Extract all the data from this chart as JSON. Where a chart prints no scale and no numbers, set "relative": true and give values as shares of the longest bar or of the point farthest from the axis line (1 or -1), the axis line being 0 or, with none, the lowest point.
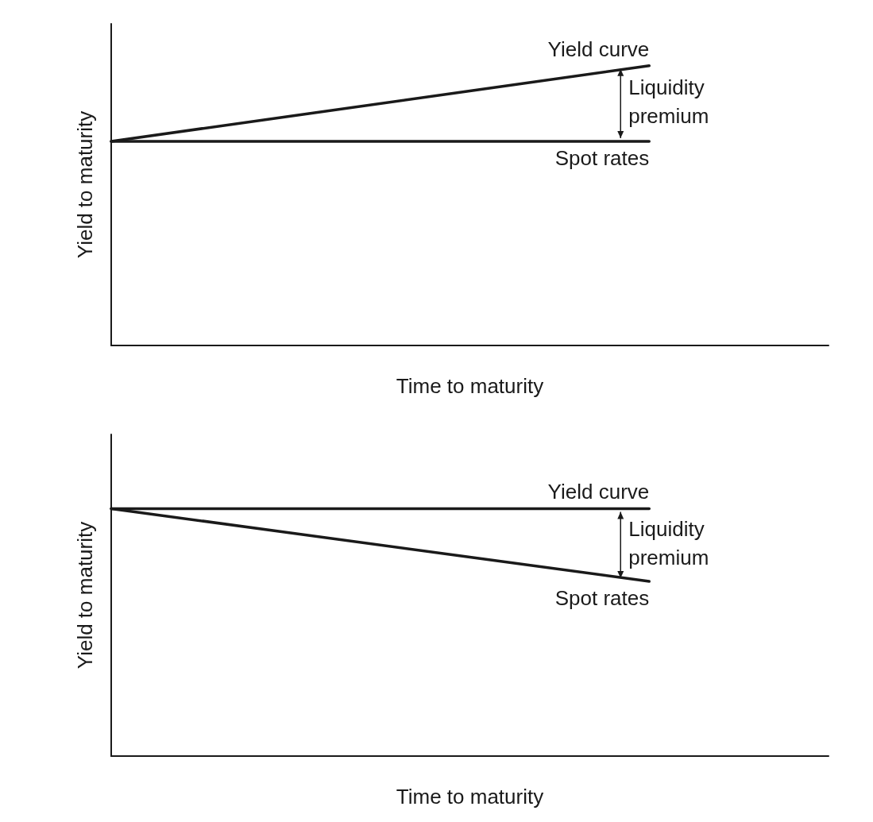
{
  "chart_data": [
    {
      "type": "line",
      "relative": true,
      "xlabel": "Time to maturity",
      "ylabel": "Yield to maturity",
      "categories": [
        null,
        null,
        null,
        null,
        null
      ],
      "series": [
        {
          "name": "Yield curve",
          "color": "#1a1a1a",
          "values": [
            0.73,
            0.82,
            0.91,
            1.0,
            null
          ]
        },
        {
          "name": "Spot rates",
          "color": "#1a1a1a",
          "values": [
            0.73,
            0.73,
            0.73,
            0.73,
            null
          ]
        }
      ],
      "annotations": [
        "Liquidity premium"
      ],
      "grid": false,
      "marker": "none",
      "line_style": "solid"
    },
    {
      "type": "line",
      "relative": true,
      "xlabel": "Time to maturity",
      "ylabel": "Yield to maturity",
      "categories": [
        null,
        null,
        null,
        null,
        null
      ],
      "series": [
        {
          "name": "Yield curve",
          "color": "#1a1a1a",
          "values": [
            1.0,
            1.0,
            1.0,
            1.0,
            null
          ]
        },
        {
          "name": "Spot rates",
          "color": "#1a1a1a",
          "values": [
            1.0,
            0.902,
            0.804,
            0.706,
            null
          ]
        }
      ],
      "annotations": [
        "Liquidity premium"
      ],
      "grid": false,
      "marker": "none",
      "line_style": "solid"
    }
  ]
}
